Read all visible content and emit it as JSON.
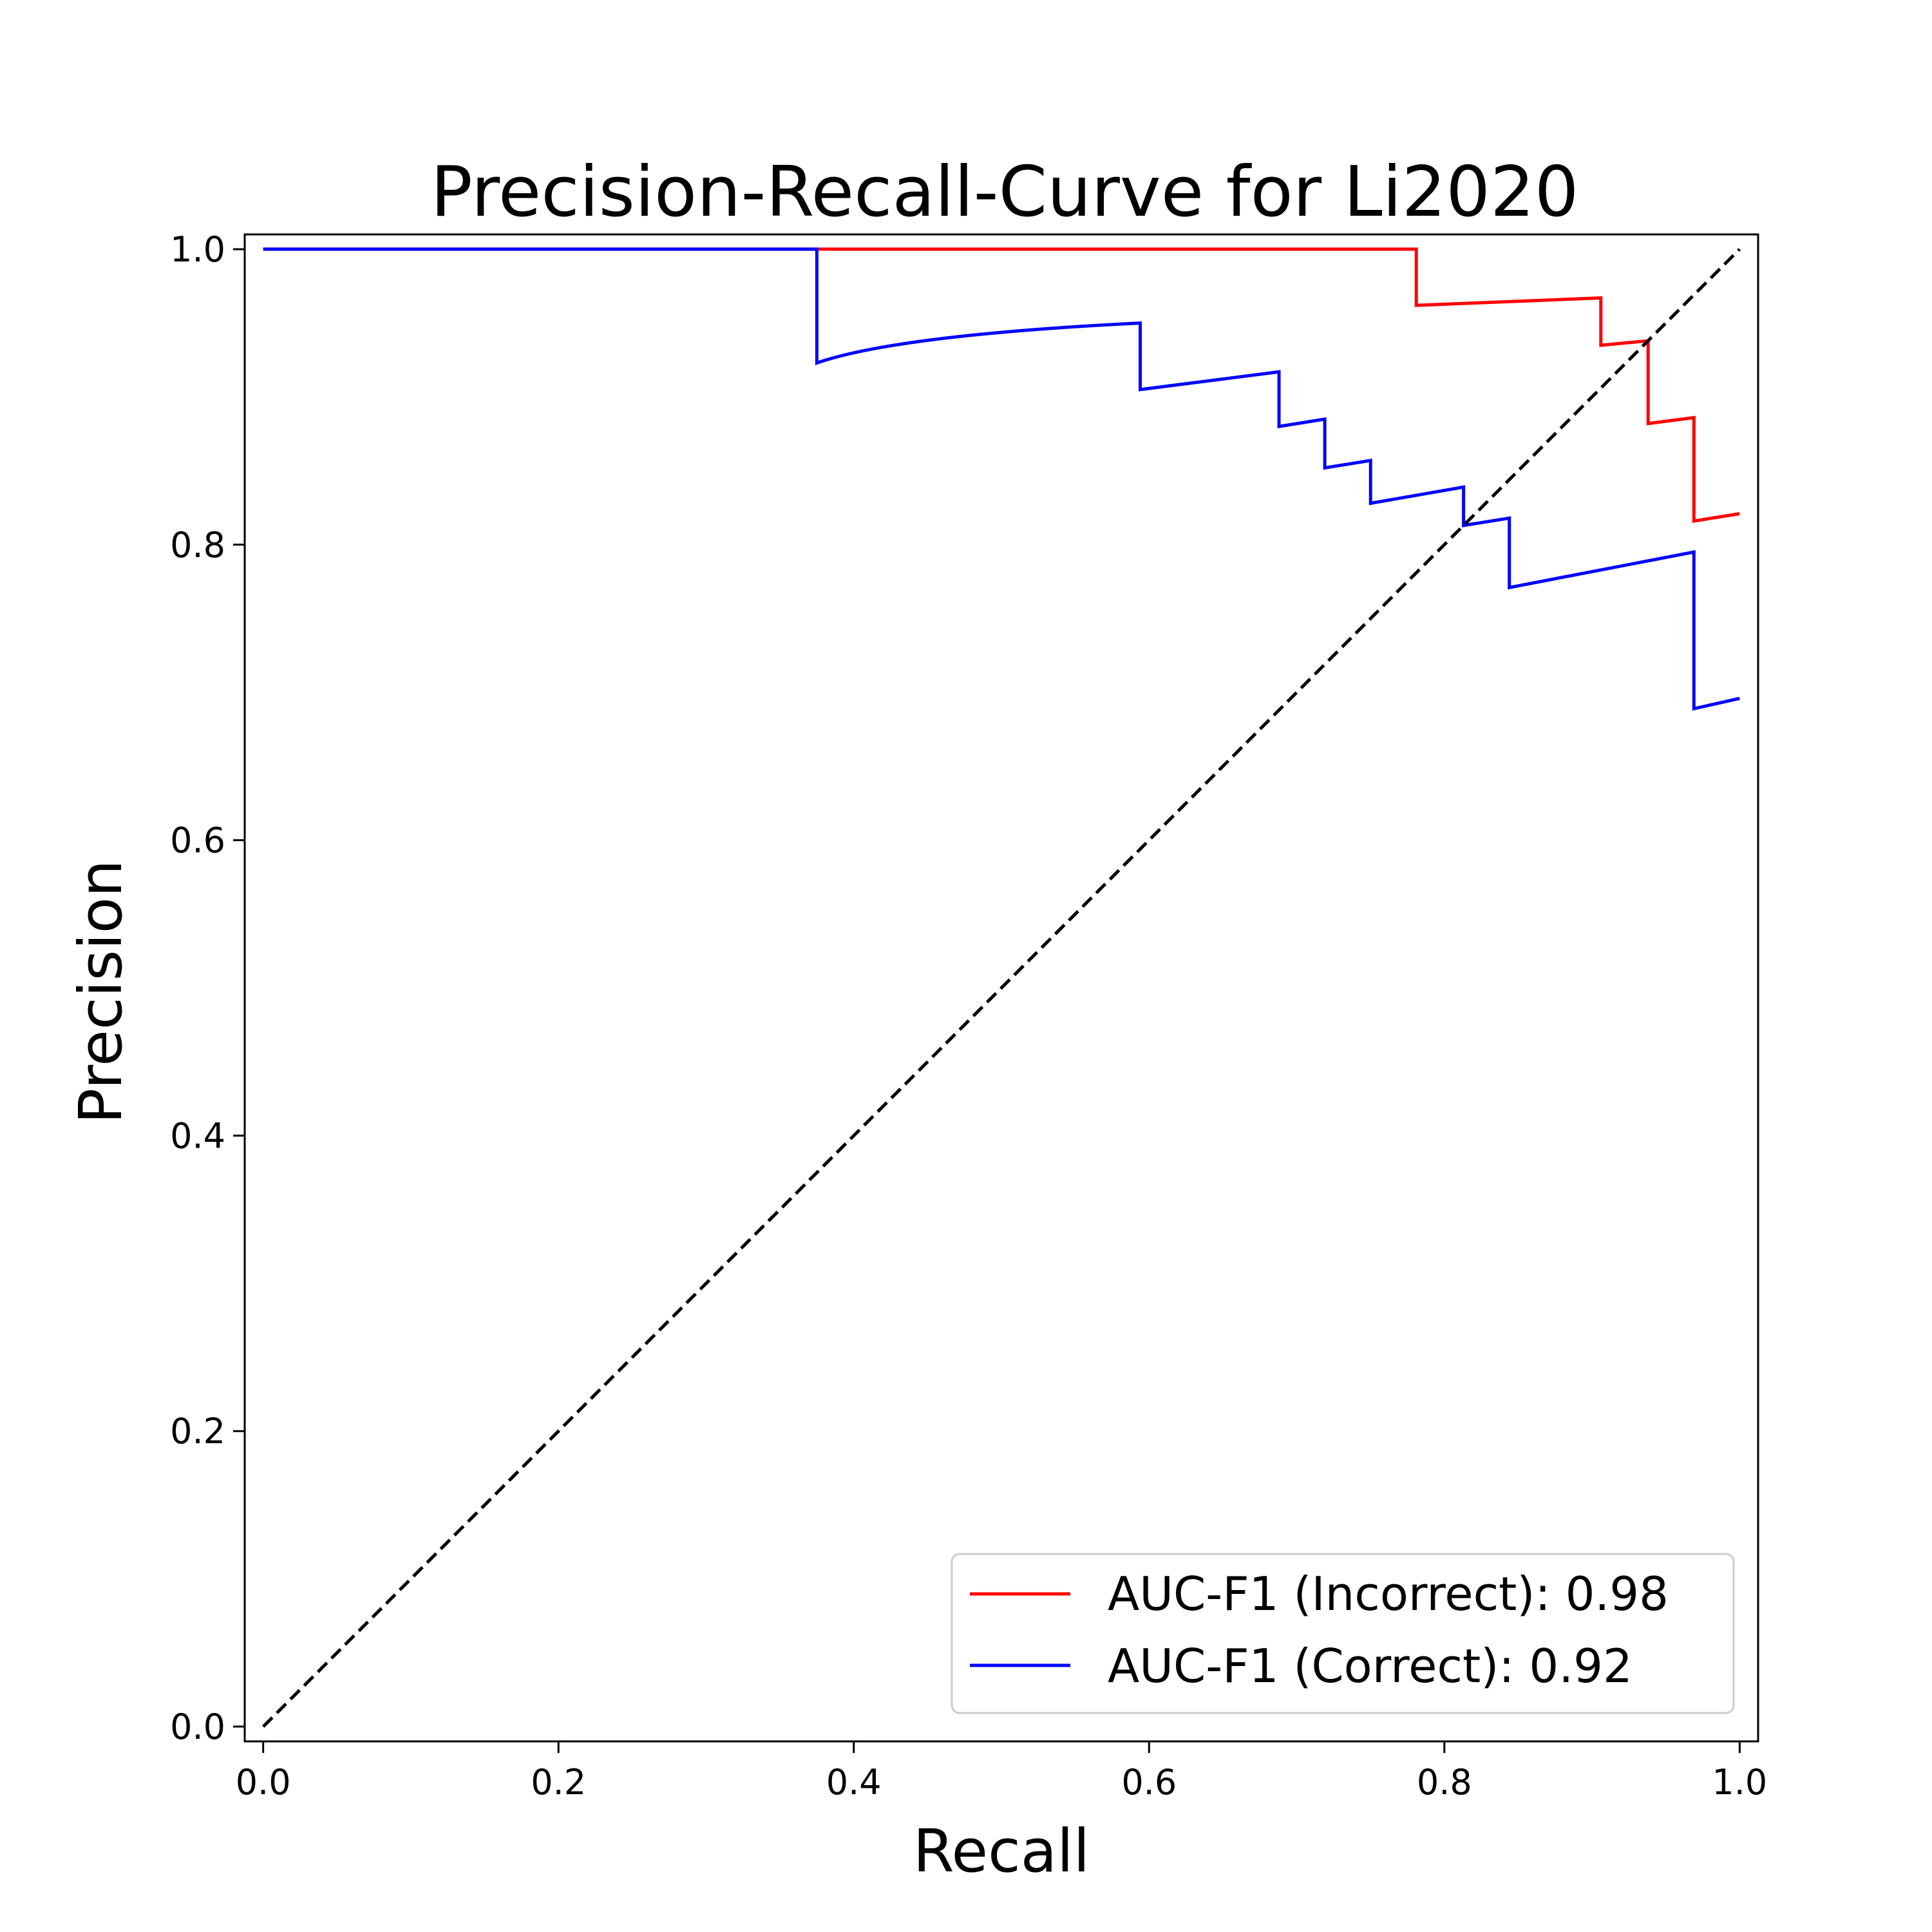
{
  "chart_data": {
    "type": "line",
    "title": "Precision-Recall-Curve for Li2020",
    "xlabel": "Recall",
    "ylabel": "Precision",
    "xlim": [
      -0.0125,
      1.0125
    ],
    "ylim": [
      -0.01,
      1.01
    ],
    "x_ticks": [
      0.0,
      0.2,
      0.4,
      0.6,
      0.8,
      1.0
    ],
    "x_tick_labels": [
      "0.0",
      "0.2",
      "0.4",
      "0.6",
      "0.8",
      "1.0"
    ],
    "y_ticks": [
      0.0,
      0.2,
      0.4,
      0.6,
      0.8,
      1.0
    ],
    "y_tick_labels": [
      "0.0",
      "0.2",
      "0.4",
      "0.6",
      "0.8",
      "1.0"
    ],
    "grid": false,
    "legend_position": "bottom-right",
    "series": [
      {
        "name": "AUC-F1  (Incorrect): 0.98",
        "color": "#ff0000",
        "x": [
          0.0,
          0.781,
          0.781,
          0.906,
          0.906,
          0.938,
          0.938,
          0.969,
          0.969,
          1.0
        ],
        "y": [
          1.0,
          1.0,
          0.962,
          0.967,
          0.935,
          0.938,
          0.882,
          0.886,
          0.816,
          0.821
        ]
      },
      {
        "name": "AUC-F1  (Correct): 0.92",
        "color": "#0000ff",
        "x": [
          0.0,
          0.375,
          0.375,
          0.594,
          0.594,
          0.688,
          0.688,
          0.719,
          0.719,
          0.75,
          0.75,
          0.813,
          0.813,
          0.844,
          0.844,
          0.969,
          0.969,
          1.0
        ],
        "y": [
          1.0,
          1.0,
          0.923,
          0.95,
          0.905,
          0.917,
          0.88,
          0.885,
          0.852,
          0.857,
          0.828,
          0.839,
          0.813,
          0.818,
          0.771,
          0.795,
          0.689,
          0.696
        ],
        "curved_segments": [
          [
            2,
            3
          ]
        ]
      },
      {
        "name": "",
        "color": "#000000",
        "dashed": true,
        "x": [
          0.0,
          1.0
        ],
        "y": [
          0.0,
          1.0
        ]
      }
    ]
  }
}
